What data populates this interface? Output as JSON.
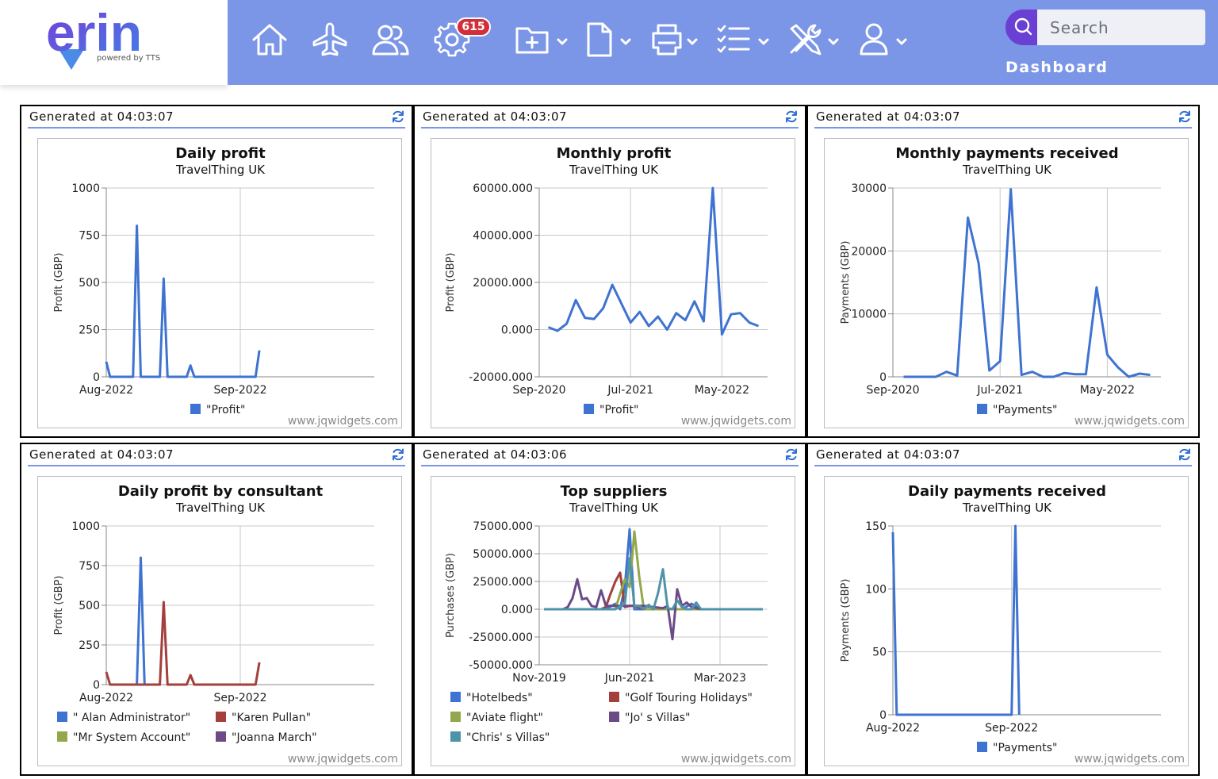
{
  "brand": {
    "name": "erin",
    "tagline": "powered by TTS"
  },
  "nav": {
    "icons": [
      "home-icon",
      "flight-icon",
      "users-icon",
      "settings-icon",
      "add-folder-icon",
      "document-icon",
      "printer-icon",
      "checklist-icon",
      "tools-icon",
      "user-icon"
    ],
    "notification_count": "615"
  },
  "search": {
    "placeholder": "Search"
  },
  "page_title": "Dashboard",
  "colors": {
    "nav": "#7b96e6",
    "accent": "#6a3fd3",
    "badge": "#d32f3a",
    "series_blue": "#3e73d2",
    "series_red": "#a3403c",
    "series_green": "#93a74c",
    "series_purple": "#6b4a86",
    "series_teal": "#4e93a8"
  },
  "watermark": "www.jqwidgets.com",
  "panels": [
    {
      "generated": "Generated at 04:03:07"
    },
    {
      "generated": "Generated at 04:03:07"
    },
    {
      "generated": "Generated at 04:03:07"
    },
    {
      "generated": "Generated at 04:03:07"
    },
    {
      "generated": "Generated at 04:03:06"
    },
    {
      "generated": "Generated at 04:03:07"
    }
  ],
  "chart_data": [
    {
      "type": "line",
      "title": "Daily profit",
      "subtitle": "TravelThing UK",
      "ylabel": "Profit (GBP)",
      "yticks": [
        "1000",
        "750",
        "500",
        "250",
        "0"
      ],
      "ylim": [
        0,
        1000
      ],
      "xticks": [
        "Aug-2022",
        "Sep-2022"
      ],
      "xtick_positions": [
        0,
        35
      ],
      "xlim": [
        0,
        70
      ],
      "series": [
        {
          "name": "\"Profit\"",
          "color": "#3e73d2",
          "x": [
            0,
            1,
            2,
            3,
            4,
            5,
            6,
            7,
            8,
            9,
            10,
            11,
            12,
            13,
            14,
            15,
            16,
            17,
            18,
            19,
            20,
            21,
            22,
            23,
            24,
            25,
            26,
            27,
            28,
            29,
            30,
            31,
            32,
            33,
            34,
            35,
            36,
            37,
            38,
            39,
            40
          ],
          "y": [
            80,
            0,
            0,
            0,
            0,
            0,
            0,
            0,
            800,
            0,
            0,
            0,
            0,
            0,
            0,
            520,
            0,
            0,
            0,
            0,
            0,
            0,
            60,
            0,
            0,
            0,
            0,
            0,
            0,
            0,
            0,
            0,
            0,
            0,
            0,
            0,
            0,
            0,
            0,
            0,
            140
          ]
        }
      ]
    },
    {
      "type": "line",
      "title": "Monthly profit",
      "subtitle": "TravelThing UK",
      "ylabel": "Profit (GBP)",
      "yticks": [
        "60000.000",
        "40000.000",
        "20000.000",
        "0.000",
        "-20000.000"
      ],
      "ylim": [
        -20000,
        60000
      ],
      "xticks": [
        "Sep-2020",
        "Jul-2021",
        "May-2022"
      ],
      "xtick_positions": [
        0,
        10,
        20
      ],
      "xlim": [
        0,
        25
      ],
      "series": [
        {
          "name": "\"Profit\"",
          "color": "#3e73d2",
          "x": [
            1,
            2,
            3,
            4,
            5,
            6,
            7,
            8,
            9,
            10,
            11,
            12,
            13,
            14,
            15,
            16,
            17,
            18,
            19,
            20,
            21,
            22,
            23,
            24
          ],
          "y": [
            1000,
            -500,
            2500,
            12500,
            5000,
            4500,
            9000,
            19000,
            11000,
            3000,
            7500,
            1500,
            5500,
            0,
            7000,
            4000,
            12000,
            3500,
            60000,
            -2000,
            6500,
            7000,
            3000,
            1500
          ]
        }
      ]
    },
    {
      "type": "line",
      "title": "Monthly payments received",
      "subtitle": "TravelThing UK",
      "ylabel": "Payments (GBP)",
      "yticks": [
        "30000",
        "20000",
        "10000",
        "0"
      ],
      "ylim": [
        0,
        30000
      ],
      "xticks": [
        "Sep-2020",
        "Jul-2021",
        "May-2022"
      ],
      "xtick_positions": [
        0,
        10,
        20
      ],
      "xlim": [
        0,
        25
      ],
      "series": [
        {
          "name": "\"Payments\"",
          "color": "#3e73d2",
          "x": [
            1,
            2,
            3,
            4,
            5,
            6,
            7,
            8,
            9,
            10,
            11,
            12,
            13,
            14,
            15,
            16,
            17,
            18,
            19,
            20,
            21,
            22,
            23,
            24
          ],
          "y": [
            0,
            0,
            0,
            0,
            800,
            200,
            25300,
            18000,
            1000,
            2500,
            29800,
            300,
            800,
            0,
            0,
            600,
            400,
            400,
            14200,
            3500,
            1500,
            0,
            500,
            300
          ]
        }
      ]
    },
    {
      "type": "line",
      "title": "Daily profit by consultant",
      "subtitle": "TravelThing UK",
      "ylabel": "Profit (GBP)",
      "yticks": [
        "1000",
        "750",
        "500",
        "250",
        "0"
      ],
      "ylim": [
        0,
        1000
      ],
      "xticks": [
        "Aug-2022",
        "Sep-2022"
      ],
      "xtick_positions": [
        0,
        35
      ],
      "xlim": [
        0,
        70
      ],
      "legend_cols": 2,
      "series": [
        {
          "name": "\" Alan Administrator\"",
          "color": "#3e73d2",
          "x": [
            8,
            9,
            10
          ],
          "y": [
            0,
            800,
            0
          ]
        },
        {
          "name": "\"Karen Pullan\"",
          "color": "#a3403c",
          "x": [
            0,
            1,
            2,
            3,
            4,
            5,
            6,
            7,
            8,
            9,
            10,
            11,
            12,
            13,
            14,
            15,
            16,
            17,
            18,
            19,
            20,
            21,
            22,
            23,
            24,
            25,
            26,
            27,
            28,
            29,
            30,
            31,
            32,
            33,
            34,
            35,
            36,
            37,
            38,
            39,
            40
          ],
          "y": [
            80,
            0,
            0,
            0,
            0,
            0,
            0,
            0,
            0,
            0,
            0,
            0,
            0,
            0,
            0,
            520,
            0,
            0,
            0,
            0,
            0,
            0,
            60,
            0,
            0,
            0,
            0,
            0,
            0,
            0,
            0,
            0,
            0,
            0,
            0,
            0,
            0,
            0,
            0,
            0,
            140
          ]
        },
        {
          "name": "\"Mr System Account\"",
          "color": "#93a74c",
          "x": [],
          "y": []
        },
        {
          "name": "\"Joanna March\"",
          "color": "#6b4a86",
          "x": [],
          "y": []
        }
      ]
    },
    {
      "type": "line",
      "title": "Top suppliers",
      "subtitle": "TravelThing UK",
      "ylabel": "Purchases (GBP)",
      "yticks": [
        "75000.000",
        "50000.000",
        "25000.000",
        "0.000",
        "-25000.000",
        "-50000.000"
      ],
      "ylim": [
        -50000,
        75000
      ],
      "xticks": [
        "Nov-2019",
        "Jun-2021",
        "Mar-2023"
      ],
      "xtick_positions": [
        0,
        19,
        38
      ],
      "xlim": [
        0,
        48
      ],
      "legend_cols": 2,
      "series": [
        {
          "name": "\"Hotelbeds\"",
          "color": "#3e73d2",
          "x": [
            1,
            5,
            10,
            14,
            16,
            17,
            18,
            19,
            20,
            22,
            24,
            26,
            28,
            30,
            32,
            34,
            47
          ],
          "y": [
            0,
            0,
            0,
            0,
            5000,
            0,
            20000,
            72000,
            0,
            0,
            0,
            0,
            0,
            0,
            5000,
            0,
            0
          ]
        },
        {
          "name": "\"Golf Touring Holidays\"",
          "color": "#a3403c",
          "x": [
            1,
            5,
            10,
            13,
            14,
            15,
            16,
            17,
            18,
            19,
            20,
            22,
            24,
            26,
            28,
            30,
            32,
            34,
            47
          ],
          "y": [
            0,
            0,
            0,
            0,
            2000,
            14000,
            25000,
            33000,
            2000,
            3000,
            3000,
            0,
            0,
            0,
            0,
            0,
            0,
            0,
            0
          ]
        },
        {
          "name": "\"Aviate flight\"",
          "color": "#93a74c",
          "x": [
            1,
            10,
            16,
            17,
            18,
            19,
            20,
            21,
            22,
            24,
            26,
            28,
            30,
            32,
            34,
            47
          ],
          "y": [
            0,
            0,
            0,
            14000,
            27000,
            20000,
            70000,
            30000,
            0,
            0,
            0,
            0,
            0,
            0,
            0,
            0
          ]
        },
        {
          "name": "\"Jo' s Villas\"",
          "color": "#6b4a86",
          "x": [
            1,
            5,
            6,
            7,
            8,
            9,
            10,
            11,
            12,
            13,
            14,
            16,
            18,
            20,
            22,
            24,
            26,
            27,
            28,
            29,
            30,
            31,
            32,
            33,
            34,
            47
          ],
          "y": [
            0,
            0,
            2000,
            10000,
            27000,
            9000,
            10000,
            3000,
            2000,
            17000,
            3000,
            3000,
            3000,
            3000,
            3000,
            2000,
            1000,
            3000,
            -27000,
            18000,
            3000,
            6000,
            2000,
            1000,
            0,
            0
          ]
        },
        {
          "name": "\"Chris' s Villas\"",
          "color": "#4e93a8",
          "x": [
            1,
            10,
            16,
            18,
            19,
            20,
            21,
            22,
            23,
            24,
            25,
            26,
            27,
            28,
            29,
            30,
            31,
            32,
            33,
            34,
            47
          ],
          "y": [
            0,
            0,
            0,
            5000,
            46000,
            3000,
            3000,
            0,
            4000,
            0,
            15000,
            36000,
            1000,
            0,
            8000,
            2000,
            0,
            0,
            6000,
            0,
            0
          ]
        }
      ]
    },
    {
      "type": "line",
      "title": "Daily payments received",
      "subtitle": "TravelThing UK",
      "ylabel": "Payments (GBP)",
      "yticks": [
        "150",
        "100",
        "50",
        "0"
      ],
      "ylim": [
        0,
        150
      ],
      "xticks": [
        "Aug-2022",
        "Sep-2022"
      ],
      "xtick_positions": [
        0,
        31
      ],
      "xlim": [
        0,
        70
      ],
      "series": [
        {
          "name": "\"Payments\"",
          "color": "#3e73d2",
          "x": [
            0,
            1,
            2,
            3,
            4,
            5,
            6,
            7,
            8,
            9,
            10,
            11,
            12,
            13,
            14,
            15,
            16,
            17,
            18,
            19,
            20,
            21,
            22,
            23,
            24,
            25,
            26,
            27,
            28,
            29,
            30,
            31,
            32,
            33
          ],
          "y": [
            145,
            0,
            0,
            0,
            0,
            0,
            0,
            0,
            0,
            0,
            0,
            0,
            0,
            0,
            0,
            0,
            0,
            0,
            0,
            0,
            0,
            0,
            0,
            0,
            0,
            0,
            0,
            0,
            0,
            0,
            0,
            0,
            150,
            0
          ]
        }
      ]
    }
  ]
}
